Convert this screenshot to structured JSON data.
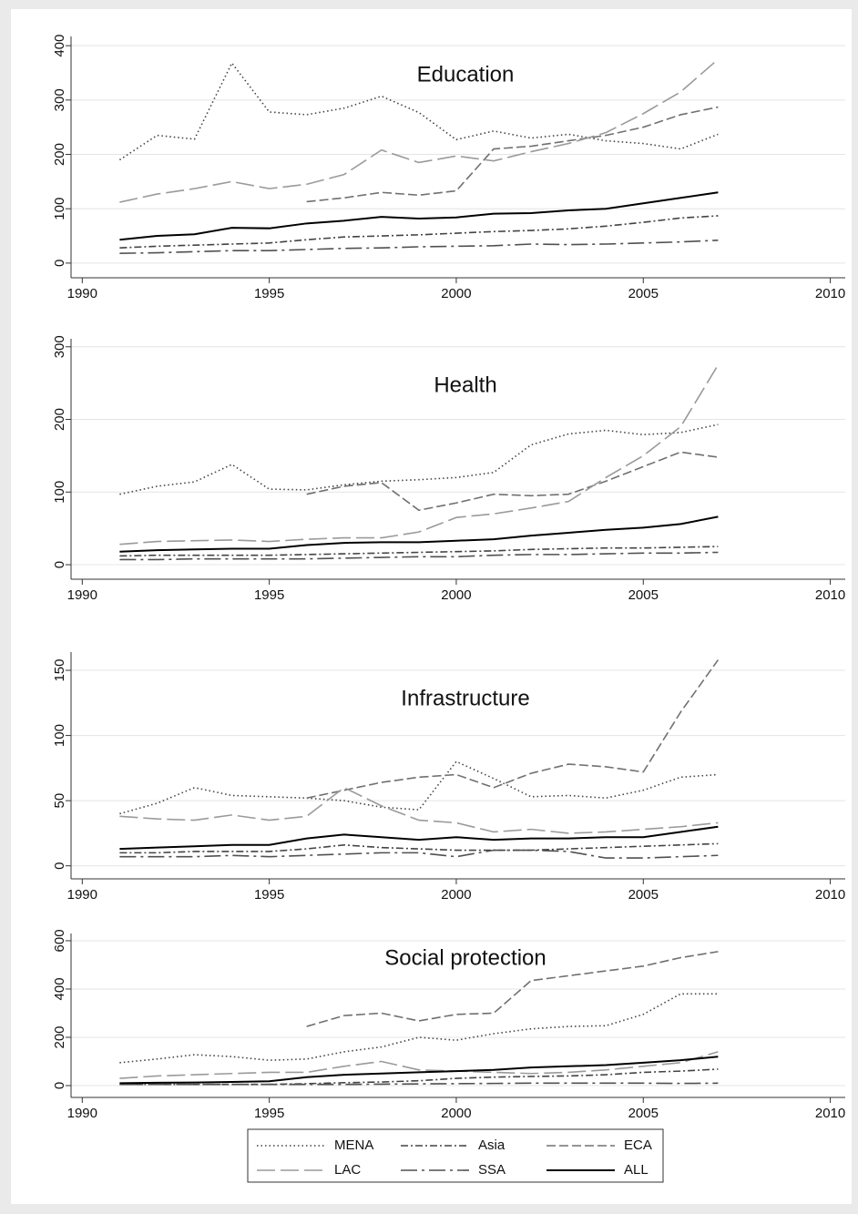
{
  "chart_data": [
    {
      "type": "line",
      "title": "Education",
      "x": [
        1991,
        1992,
        1993,
        1994,
        1995,
        1996,
        1997,
        1998,
        1999,
        2000,
        2001,
        2002,
        2003,
        2004,
        2005,
        2006,
        2007
      ],
      "xlim": [
        1989.7,
        2010.4
      ],
      "xticks": [
        1990,
        1995,
        2000,
        2005,
        2010
      ],
      "ylim": [
        -27,
        417
      ],
      "yticks": [
        0,
        100,
        200,
        300,
        400
      ],
      "grid": true,
      "series": [
        {
          "color": "#444444",
          "dash": "dotted",
          "values": [
            190,
            235,
            228,
            368,
            278,
            273,
            285,
            307,
            277,
            227,
            243,
            230,
            237,
            225,
            220,
            210,
            237
          ]
        },
        {
          "color": "#444444",
          "dash": "dashdot",
          "values": [
            28,
            31,
            33,
            35,
            37,
            43,
            48,
            50,
            52,
            55,
            58,
            60,
            63,
            68,
            75,
            83,
            87
          ]
        },
        {
          "color": "#707070",
          "dash": "dashed",
          "values": [
            null,
            null,
            null,
            null,
            null,
            113,
            120,
            130,
            125,
            133,
            210,
            215,
            225,
            235,
            250,
            273,
            287
          ]
        },
        {
          "color": "#9a9a9a",
          "dash": "longdash",
          "values": [
            112,
            127,
            137,
            150,
            137,
            145,
            163,
            208,
            185,
            197,
            188,
            205,
            220,
            240,
            275,
            315,
            375
          ]
        },
        {
          "color": "#505050",
          "dash": "longdashdot",
          "values": [
            18,
            19,
            21,
            23,
            23,
            25,
            27,
            28,
            30,
            31,
            32,
            35,
            34,
            35,
            37,
            39,
            42
          ]
        },
        {
          "color": "#000000",
          "dash": "solid",
          "values": [
            43,
            50,
            53,
            65,
            64,
            73,
            78,
            85,
            82,
            84,
            91,
            92,
            97,
            100,
            110,
            120,
            130
          ]
        }
      ]
    },
    {
      "type": "line",
      "title": "Health",
      "x": [
        1991,
        1992,
        1993,
        1994,
        1995,
        1996,
        1997,
        1998,
        1999,
        2000,
        2001,
        2002,
        2003,
        2004,
        2005,
        2006,
        2007
      ],
      "xlim": [
        1989.7,
        2010.4
      ],
      "xticks": [
        1990,
        1995,
        2000,
        2005,
        2010
      ],
      "ylim": [
        -20,
        311
      ],
      "yticks": [
        0,
        100,
        200,
        300
      ],
      "grid": true,
      "series": [
        {
          "color": "#444444",
          "dash": "dotted",
          "values": [
            97,
            108,
            114,
            138,
            104,
            103,
            110,
            115,
            117,
            120,
            127,
            165,
            180,
            185,
            179,
            182,
            193
          ]
        },
        {
          "color": "#444444",
          "dash": "dashdot",
          "values": [
            12,
            13,
            13,
            13,
            13,
            14,
            15,
            16,
            17,
            18,
            19,
            21,
            22,
            23,
            23,
            24,
            25
          ]
        },
        {
          "color": "#707070",
          "dash": "dashed",
          "values": [
            null,
            null,
            null,
            null,
            null,
            97,
            108,
            113,
            75,
            85,
            97,
            95,
            97,
            115,
            135,
            155,
            148
          ]
        },
        {
          "color": "#9a9a9a",
          "dash": "longdash",
          "values": [
            28,
            32,
            33,
            34,
            32,
            35,
            37,
            37,
            45,
            65,
            70,
            78,
            87,
            120,
            150,
            190,
            275
          ]
        },
        {
          "color": "#505050",
          "dash": "longdashdot",
          "values": [
            7,
            7,
            8,
            8,
            8,
            8,
            9,
            10,
            11,
            11,
            13,
            14,
            14,
            15,
            16,
            16,
            17
          ]
        },
        {
          "color": "#000000",
          "dash": "solid",
          "values": [
            18,
            20,
            21,
            22,
            22,
            27,
            30,
            31,
            31,
            33,
            35,
            40,
            44,
            48,
            51,
            56,
            66
          ]
        }
      ]
    },
    {
      "type": "line",
      "title": "Infrastructure",
      "x": [
        1991,
        1992,
        1993,
        1994,
        1995,
        1996,
        1997,
        1998,
        1999,
        2000,
        2001,
        2002,
        2003,
        2004,
        2005,
        2006,
        2007
      ],
      "xlim": [
        1989.7,
        2010.4
      ],
      "xticks": [
        1990,
        1995,
        2000,
        2005,
        2010
      ],
      "ylim": [
        -10,
        164
      ],
      "yticks": [
        0,
        50,
        100,
        150
      ],
      "grid": true,
      "series": [
        {
          "color": "#444444",
          "dash": "dotted",
          "values": [
            40,
            48,
            60,
            54,
            53,
            52,
            50,
            45,
            43,
            80,
            67,
            53,
            54,
            52,
            58,
            68,
            70
          ]
        },
        {
          "color": "#444444",
          "dash": "dashdot",
          "values": [
            10,
            10,
            11,
            11,
            11,
            13,
            16,
            14,
            13,
            12,
            12,
            12,
            13,
            14,
            15,
            16,
            17
          ]
        },
        {
          "color": "#707070",
          "dash": "dashed",
          "values": [
            null,
            null,
            null,
            null,
            null,
            52,
            58,
            64,
            68,
            70,
            60,
            71,
            78,
            76,
            72,
            118,
            158
          ]
        },
        {
          "color": "#9a9a9a",
          "dash": "longdash",
          "values": [
            38,
            36,
            35,
            39,
            35,
            38,
            60,
            46,
            35,
            33,
            26,
            28,
            25,
            26,
            28,
            30,
            33
          ]
        },
        {
          "color": "#505050",
          "dash": "longdashdot",
          "values": [
            7,
            7,
            7,
            8,
            7,
            8,
            9,
            10,
            10,
            7,
            12,
            12,
            11,
            6,
            6,
            7,
            8
          ]
        },
        {
          "color": "#000000",
          "dash": "solid",
          "values": [
            13,
            14,
            15,
            16,
            16,
            21,
            24,
            22,
            20,
            22,
            20,
            21,
            21,
            22,
            22,
            26,
            30
          ]
        }
      ]
    },
    {
      "type": "line",
      "title": "Social protection",
      "x": [
        1991,
        1992,
        1993,
        1994,
        1995,
        1996,
        1997,
        1998,
        1999,
        2000,
        2001,
        2002,
        2003,
        2004,
        2005,
        2006,
        2007
      ],
      "xlim": [
        1989.7,
        2010.4
      ],
      "xticks": [
        1990,
        1995,
        2000,
        2005,
        2010
      ],
      "ylim": [
        -49,
        630
      ],
      "yticks": [
        0,
        200,
        400,
        600
      ],
      "grid": true,
      "series": [
        {
          "name": "MENA",
          "color": "#444444",
          "dash": "dotted",
          "values": [
            95,
            110,
            128,
            120,
            105,
            110,
            140,
            160,
            200,
            188,
            215,
            235,
            245,
            248,
            295,
            380,
            380
          ]
        },
        {
          "name": "Asia",
          "color": "#444444",
          "dash": "dashdot",
          "values": [
            5,
            5,
            5,
            5,
            5,
            8,
            12,
            15,
            20,
            30,
            35,
            38,
            40,
            45,
            55,
            60,
            68
          ]
        },
        {
          "name": "ECA",
          "color": "#707070",
          "dash": "dashed",
          "values": [
            null,
            null,
            null,
            null,
            null,
            245,
            290,
            300,
            268,
            295,
            300,
            435,
            455,
            475,
            495,
            530,
            555
          ]
        },
        {
          "name": "LAC",
          "color": "#9a9a9a",
          "dash": "longdash",
          "values": [
            30,
            40,
            45,
            50,
            55,
            55,
            80,
            100,
            65,
            60,
            55,
            50,
            55,
            65,
            80,
            95,
            140
          ]
        },
        {
          "name": "SSA",
          "color": "#505050",
          "dash": "longdashdot",
          "values": [
            5,
            5,
            5,
            5,
            5,
            5,
            5,
            6,
            7,
            8,
            9,
            10,
            10,
            10,
            10,
            9,
            10
          ]
        },
        {
          "name": "ALL",
          "color": "#000000",
          "dash": "solid",
          "values": [
            10,
            12,
            13,
            15,
            18,
            35,
            45,
            50,
            55,
            60,
            65,
            75,
            80,
            85,
            95,
            105,
            120
          ]
        }
      ]
    }
  ]
}
